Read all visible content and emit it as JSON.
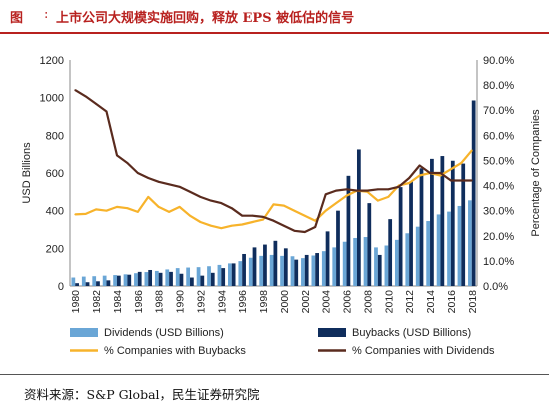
{
  "figure": {
    "label": "图",
    "separator": ":",
    "title": "上市公司大规模实施回购，释放 EPS 被低估的信号",
    "source": "资料来源：S&P Global，民生证券研究院"
  },
  "chart_data": {
    "type": "bar",
    "x": [
      "1980",
      "1981",
      "1982",
      "1983",
      "1984",
      "1985",
      "1986",
      "1987",
      "1988",
      "1989",
      "1990",
      "1991",
      "1992",
      "1993",
      "1994",
      "1995",
      "1996",
      "1997",
      "1998",
      "1999",
      "2000",
      "2001",
      "2002",
      "2003",
      "2004",
      "2005",
      "2006",
      "2007",
      "2008",
      "2009",
      "2010",
      "2011",
      "2012",
      "2013",
      "2014",
      "2015",
      "2016",
      "2017",
      "2018"
    ],
    "x_tick_labels": [
      "1980",
      "1982",
      "1984",
      "1986",
      "1988",
      "1990",
      "1992",
      "1994",
      "1996",
      "1998",
      "2000",
      "2002",
      "2004",
      "2006",
      "2008",
      "2010",
      "2012",
      "2014",
      "2016",
      "2018"
    ],
    "ylabel": "USD Billions",
    "ylabel_right": "Percentage of Companies",
    "ylim": [
      0,
      1200
    ],
    "ylim_right": [
      0,
      90
    ],
    "yticks": [
      "0",
      "200",
      "400",
      "600",
      "800",
      "1000",
      "1200"
    ],
    "yticks_right": [
      "0.0%",
      "10.0%",
      "20.0%",
      "30.0%",
      "40.0%",
      "50.0%",
      "60.0%",
      "70.0%",
      "80.0%",
      "90.0%"
    ],
    "grid": false,
    "legend_position": "bottom",
    "colors": {
      "dividends": "#6aa6d6",
      "buybacks": "#0f2d5c",
      "pct_buybacks": "#f7b32b",
      "pct_dividends": "#5a2b1e"
    },
    "legend": [
      "Dividends (USD Billions)",
      "Buybacks (USD Billions)",
      "% Companies with Buybacks",
      "% Companies with Dividends"
    ],
    "series": [
      {
        "name": "Dividends (USD Billions)",
        "type": "bar",
        "axis": "left",
        "values": [
          45,
          50,
          52,
          55,
          58,
          62,
          68,
          74,
          80,
          88,
          95,
          98,
          100,
          105,
          112,
          120,
          132,
          150,
          160,
          165,
          160,
          158,
          148,
          162,
          185,
          205,
          235,
          255,
          260,
          205,
          215,
          245,
          280,
          315,
          345,
          380,
          395,
          425,
          455
        ]
      },
      {
        "name": "Buybacks (USD Billions)",
        "type": "bar",
        "axis": "left",
        "values": [
          15,
          20,
          25,
          30,
          55,
          60,
          75,
          85,
          70,
          75,
          65,
          45,
          55,
          70,
          95,
          120,
          170,
          205,
          220,
          240,
          200,
          140,
          165,
          175,
          290,
          400,
          585,
          725,
          440,
          165,
          355,
          525,
          555,
          625,
          675,
          690,
          665,
          650,
          985
        ]
      },
      {
        "name": "% Companies with Buybacks",
        "type": "line",
        "axis": "right",
        "values": [
          28.5,
          28.7,
          30.5,
          30.0,
          31.5,
          31.0,
          29.5,
          35.5,
          31.5,
          29.5,
          31.5,
          28.0,
          25.5,
          24.0,
          23.0,
          24.0,
          24.5,
          25.5,
          26.5,
          32.5,
          32.0,
          30.0,
          28.0,
          26.0,
          30.0,
          33.0,
          36.0,
          38.0,
          37.5,
          34.0,
          35.5,
          40.0,
          41.0,
          44.0,
          45.0,
          44.0,
          46.5,
          49.0,
          54.0
        ]
      },
      {
        "name": "% Companies with Dividends",
        "type": "line",
        "axis": "right",
        "values": [
          78.0,
          75.5,
          72.5,
          69.5,
          52.0,
          49.0,
          45.0,
          43.0,
          41.5,
          40.5,
          39.5,
          37.5,
          35.5,
          34.0,
          33.0,
          31.0,
          28.0,
          28.0,
          27.5,
          26.0,
          24.0,
          22.0,
          21.5,
          23.5,
          36.5,
          38.0,
          38.5,
          38.0,
          38.0,
          38.5,
          38.5,
          39.5,
          43.0,
          48.0,
          45.0,
          45.0,
          42.0,
          42.0,
          42.0
        ]
      }
    ]
  }
}
